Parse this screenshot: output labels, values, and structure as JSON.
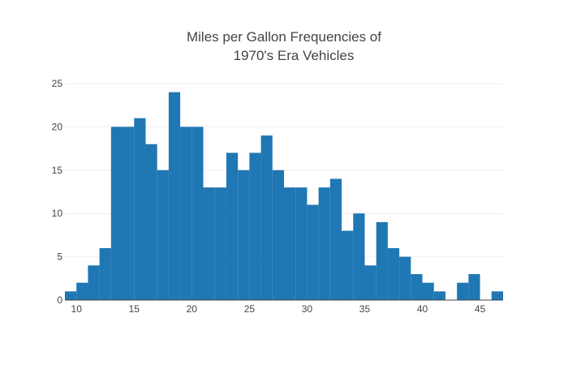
{
  "chart_data": {
    "type": "bar",
    "title": "Miles per Gallon Frequencies of 1970's Era Vehicles",
    "title_lines": [
      "Miles per Gallon Frequencies of",
      "1970's Era Vehicles"
    ],
    "xlabel": "",
    "ylabel": "",
    "bin_edges": [
      9,
      10,
      11,
      12,
      13,
      14,
      15,
      16,
      17,
      18,
      19,
      20,
      21,
      22,
      23,
      24,
      25,
      26,
      27,
      28,
      29,
      30,
      31,
      32,
      33,
      34,
      35,
      36,
      37,
      38,
      39,
      40,
      41,
      42,
      43,
      44,
      45,
      46,
      47
    ],
    "values": [
      1,
      2,
      4,
      6,
      20,
      20,
      21,
      18,
      15,
      24,
      20,
      20,
      13,
      13,
      17,
      15,
      17,
      19,
      15,
      13,
      13,
      11,
      13,
      14,
      8,
      10,
      4,
      9,
      6,
      5,
      3,
      2,
      1,
      0,
      2,
      3,
      0,
      1
    ],
    "xlim": [
      9,
      47
    ],
    "ylim": [
      0,
      25
    ],
    "x_ticks": [
      10,
      15,
      20,
      25,
      30,
      35,
      40,
      45
    ],
    "y_ticks": [
      0,
      5,
      10,
      15,
      20,
      25
    ],
    "grid": true,
    "legend": "none",
    "colors": {
      "bar": "#1f77b4",
      "grid": "#eeeeee",
      "text": "#444444"
    }
  }
}
